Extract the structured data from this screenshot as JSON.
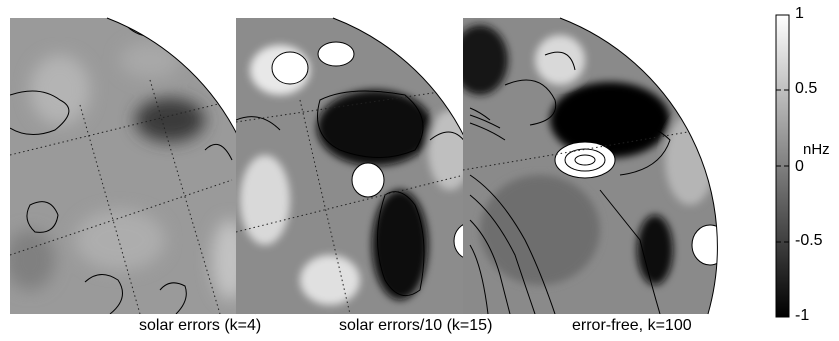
{
  "figure": {
    "panels": [
      {
        "label": "solar errors (k=4)"
      },
      {
        "label": "solar errors/10 (k=15)"
      },
      {
        "label": "error-free, k=100"
      }
    ],
    "colorbar": {
      "unit": "nHz",
      "ticks": [
        "1",
        "0.5",
        "0",
        "-0.5",
        "-1"
      ],
      "range": [
        -1,
        1
      ],
      "colormap": "grayscale (black = -1, white = 1)"
    }
  }
}
